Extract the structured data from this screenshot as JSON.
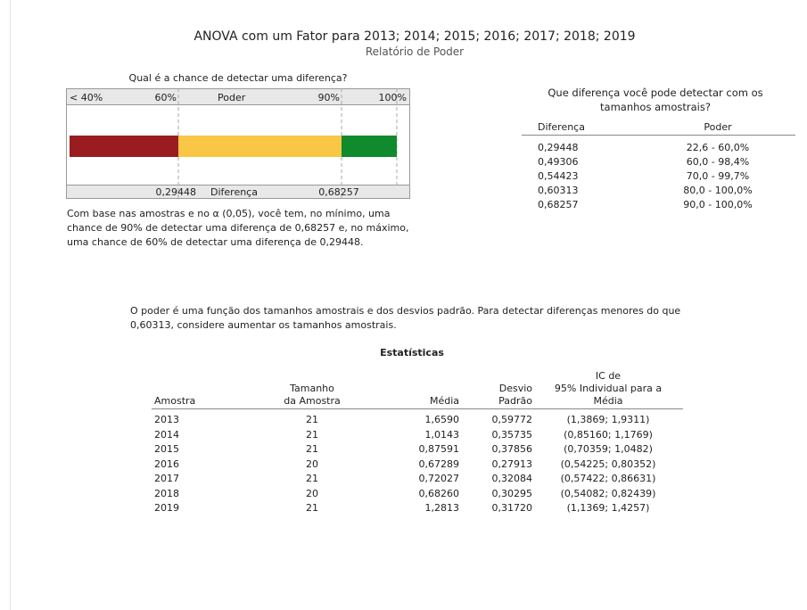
{
  "header": {
    "title": "ANOVA com um Fator para 2013; 2014; 2015; 2016; 2017; 2018; 2019",
    "subtitle": "Relatório de Poder"
  },
  "power_chart": {
    "title": "Qual é a chance de detectar uma diferença?",
    "top_labels": [
      "< 40%",
      "60%",
      "90%",
      "100%"
    ],
    "top_axis_label": "Poder",
    "bottom_labels": [
      "0,29448",
      "0,68257"
    ],
    "bottom_axis_label": "Diferença",
    "note": "Com base nas amostras e no α (0,05), você tem, no mínimo, uma chance de 90% de detectar uma diferença de 0,68257 e, no máximo, uma chance de 60% de detectar uma diferença de 0,29448."
  },
  "difference_table": {
    "title": "Que diferença você pode detectar com os tamanhos amostrais?",
    "columns": [
      "Diferença",
      "Poder"
    ],
    "rows": [
      [
        "0,29448",
        "22,6 - 60,0%"
      ],
      [
        "0,49306",
        "60,0 - 98,4%"
      ],
      [
        "0,54423",
        "70,0 - 99,7%"
      ],
      [
        "0,60313",
        "80,0 - 100,0%"
      ],
      [
        "0,68257",
        "90,0 - 100,0%"
      ]
    ]
  },
  "note": "O poder é uma função dos tamanhos amostrais e dos desvios padrão. Para detectar diferenças menores do que 0,60313, considere aumentar os tamanhos amostrais.",
  "stats_table": {
    "title": "Estatísticas",
    "columns": [
      [
        "Amostra"
      ],
      [
        "Tamanho",
        "da Amostra"
      ],
      [
        "Média"
      ],
      [
        "Desvio",
        "Padrão"
      ],
      [
        "IC de",
        "95% Individual para a",
        "Média"
      ]
    ],
    "rows": [
      [
        "2013",
        "21",
        "1,6590",
        "0,59772",
        "(1,3869; 1,9311)"
      ],
      [
        "2014",
        "21",
        "1,0143",
        "0,35735",
        "(0,85160; 1,1769)"
      ],
      [
        "2015",
        "21",
        "0,87591",
        "0,37856",
        "(0,70359; 1,0482)"
      ],
      [
        "2016",
        "20",
        "0,67289",
        "0,27913",
        "(0,54225; 0,80352)"
      ],
      [
        "2017",
        "21",
        "0,72027",
        "0,32084",
        "(0,57422; 0,86631)"
      ],
      [
        "2018",
        "20",
        "0,68260",
        "0,30295",
        "(0,54082; 0,82439)"
      ],
      [
        "2019",
        "21",
        "1,2813",
        "0,31720",
        "(1,1369; 1,4257)"
      ]
    ]
  }
}
